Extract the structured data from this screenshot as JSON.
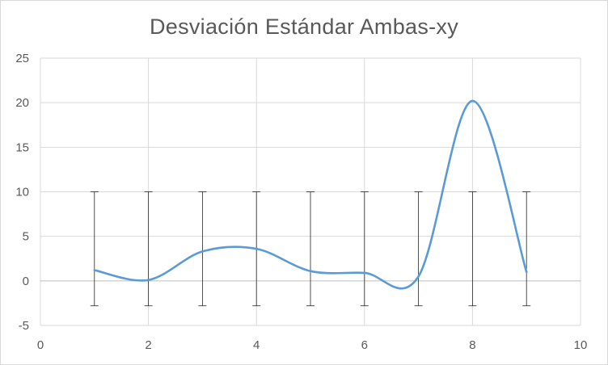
{
  "chart_data": {
    "type": "scatter",
    "title": "Desviación Estándar  Ambas-xy",
    "xlabel": "",
    "ylabel": "",
    "xlim": [
      0,
      10
    ],
    "ylim": [
      -5,
      25
    ],
    "x_ticks": [
      "0",
      "2",
      "4",
      "6",
      "8",
      "10"
    ],
    "y_ticks": [
      "25",
      "20",
      "15",
      "10",
      "5",
      "0",
      "-5"
    ],
    "grid": true,
    "smooth_line": true,
    "series": [
      {
        "x": [
          1,
          2,
          3,
          4,
          5,
          6,
          7,
          8,
          9
        ],
        "y": [
          1.2,
          0.1,
          3.3,
          3.6,
          1.1,
          0.9,
          0.5,
          20.2,
          1.0
        ],
        "error_low": [
          -2.8,
          -2.8,
          -2.8,
          -2.8,
          -2.8,
          -2.8,
          -2.8,
          -2.8,
          -2.8
        ],
        "error_high": [
          10,
          10,
          10,
          10,
          10,
          10,
          10,
          10,
          10
        ]
      }
    ],
    "colors": {
      "line": "#5b9bd5",
      "grid": "#d9d9d9",
      "error_bar": "#262626"
    }
  }
}
